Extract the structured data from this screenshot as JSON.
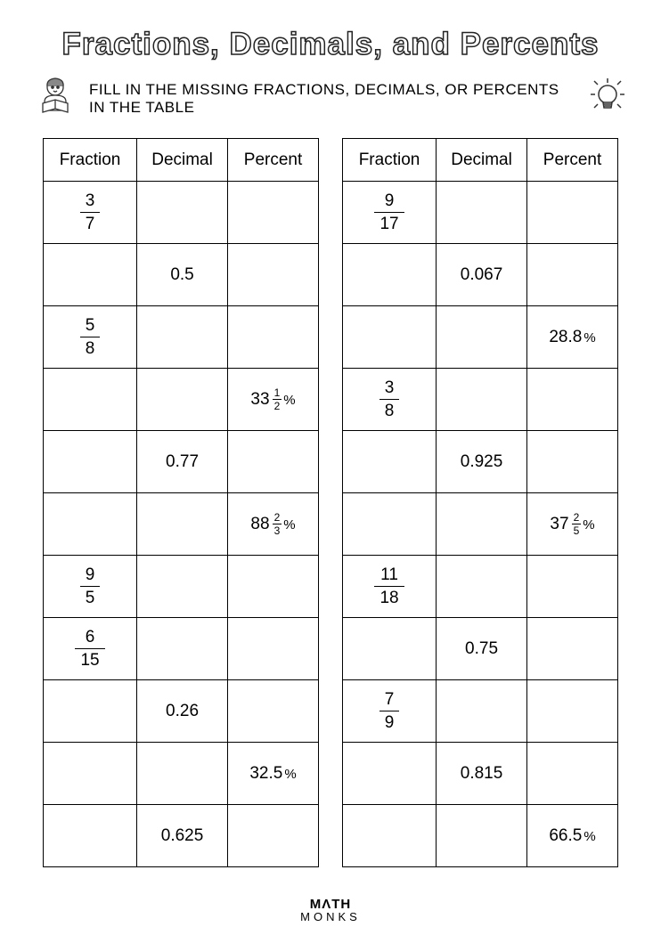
{
  "title": "Fractions, Decimals, and Percents",
  "subtitle": "FILL IN THE MISSING FRACTIONS, DECIMALS, OR PERCENTS IN THE TABLE",
  "headers": {
    "fraction": "Fraction",
    "decimal": "Decimal",
    "percent": "Percent"
  },
  "footer": {
    "line1": "MΛTH",
    "line2": "MONKS"
  },
  "left": [
    {
      "fraction": {
        "n": "3",
        "d": "7"
      },
      "decimal": "",
      "percent": ""
    },
    {
      "fraction": null,
      "decimal": "0.5",
      "percent": ""
    },
    {
      "fraction": {
        "n": "5",
        "d": "8"
      },
      "decimal": "",
      "percent": ""
    },
    {
      "fraction": null,
      "decimal": "",
      "percent": {
        "whole": "33",
        "n": "1",
        "d": "2"
      }
    },
    {
      "fraction": null,
      "decimal": "0.77",
      "percent": ""
    },
    {
      "fraction": null,
      "decimal": "",
      "percent": {
        "whole": "88",
        "n": "2",
        "d": "3"
      }
    },
    {
      "fraction": {
        "n": "9",
        "d": "5"
      },
      "decimal": "",
      "percent": ""
    },
    {
      "fraction": {
        "n": "6",
        "d": "15"
      },
      "decimal": "",
      "percent": ""
    },
    {
      "fraction": null,
      "decimal": "0.26",
      "percent": ""
    },
    {
      "fraction": null,
      "decimal": "",
      "percent": "32.5"
    },
    {
      "fraction": null,
      "decimal": "0.625",
      "percent": ""
    }
  ],
  "right": [
    {
      "fraction": {
        "n": "9",
        "d": "17"
      },
      "decimal": "",
      "percent": ""
    },
    {
      "fraction": null,
      "decimal": "0.067",
      "percent": ""
    },
    {
      "fraction": null,
      "decimal": "",
      "percent": "28.8"
    },
    {
      "fraction": {
        "n": "3",
        "d": "8"
      },
      "decimal": "",
      "percent": ""
    },
    {
      "fraction": null,
      "decimal": "0.925",
      "percent": ""
    },
    {
      "fraction": null,
      "decimal": "",
      "percent": {
        "whole": "37",
        "n": "2",
        "d": "5"
      }
    },
    {
      "fraction": {
        "n": "11",
        "d": "18"
      },
      "decimal": "",
      "percent": ""
    },
    {
      "fraction": null,
      "decimal": "0.75",
      "percent": ""
    },
    {
      "fraction": {
        "n": "7",
        "d": "9"
      },
      "decimal": "",
      "percent": ""
    },
    {
      "fraction": null,
      "decimal": "0.815",
      "percent": ""
    },
    {
      "fraction": null,
      "decimal": "",
      "percent": "66.5"
    }
  ]
}
